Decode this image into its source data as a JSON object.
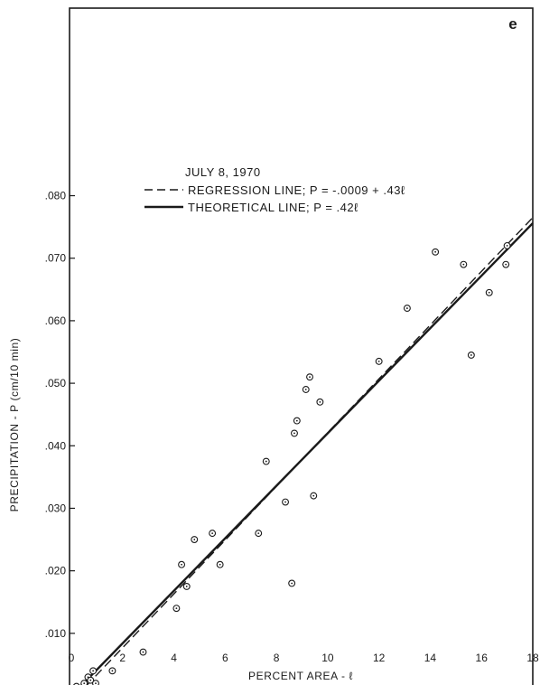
{
  "chart_data": {
    "type": "scatter",
    "panel_label": "e",
    "xlabel": "PERCENT AREA - ℓ",
    "ylabel": "PRECIPITATION - P (cm/10 min)",
    "xlim": [
      0,
      18
    ],
    "ylim": [
      0,
      0.11
    ],
    "x_ticks": [
      0,
      2,
      4,
      6,
      8,
      10,
      12,
      14,
      16,
      18
    ],
    "x_tick_labels": [
      "0",
      "2",
      "4",
      "6",
      "8",
      "10",
      "12",
      "14",
      "16",
      "18"
    ],
    "y_ticks": [
      0,
      0.01,
      0.02,
      0.03,
      0.04,
      0.05,
      0.06,
      0.07,
      0.08
    ],
    "y_tick_labels": [
      "0",
      ".010",
      ".020",
      ".030",
      ".040",
      ".050",
      ".060",
      ".070",
      ".080"
    ],
    "grid": false,
    "legend": {
      "title": "JULY 8, 1970",
      "entries": [
        {
          "label": "REGRESSION LINE; P = -.0009 + .43ℓ",
          "style": "dashed"
        },
        {
          "label": "THEORETICAL LINE; P = .42ℓ",
          "style": "solid"
        }
      ]
    },
    "lines": [
      {
        "style": "dashed",
        "intercept": -0.0009,
        "slope": 0.0043
      },
      {
        "style": "solid",
        "intercept": 0,
        "slope": 0.0042
      }
    ],
    "points": [
      {
        "x": 0.2,
        "y": 0.0015
      },
      {
        "x": 0.35,
        "y": 0.001
      },
      {
        "x": 0.5,
        "y": 0.002
      },
      {
        "x": 0.55,
        "y": 0.0005
      },
      {
        "x": 0.65,
        "y": 0.003
      },
      {
        "x": 0.7,
        "y": 0.001
      },
      {
        "x": 0.75,
        "y": 0.0025
      },
      {
        "x": 0.85,
        "y": 0.004
      },
      {
        "x": 0.95,
        "y": 0.002
      },
      {
        "x": 1.6,
        "y": 0.004
      },
      {
        "x": 2.8,
        "y": 0.007
      },
      {
        "x": 4.1,
        "y": 0.014
      },
      {
        "x": 4.3,
        "y": 0.021
      },
      {
        "x": 4.5,
        "y": 0.0175
      },
      {
        "x": 4.8,
        "y": 0.025
      },
      {
        "x": 5.5,
        "y": 0.026
      },
      {
        "x": 5.8,
        "y": 0.021
      },
      {
        "x": 7.3,
        "y": 0.026
      },
      {
        "x": 7.6,
        "y": 0.0375
      },
      {
        "x": 8.35,
        "y": 0.031
      },
      {
        "x": 8.6,
        "y": 0.018
      },
      {
        "x": 8.7,
        "y": 0.042
      },
      {
        "x": 8.8,
        "y": 0.044
      },
      {
        "x": 9.15,
        "y": 0.049
      },
      {
        "x": 9.3,
        "y": 0.051
      },
      {
        "x": 9.45,
        "y": 0.032
      },
      {
        "x": 9.7,
        "y": 0.047
      },
      {
        "x": 12.0,
        "y": 0.0535
      },
      {
        "x": 13.1,
        "y": 0.062
      },
      {
        "x": 14.2,
        "y": 0.071
      },
      {
        "x": 15.3,
        "y": 0.069
      },
      {
        "x": 15.6,
        "y": 0.0545
      },
      {
        "x": 16.3,
        "y": 0.0645
      },
      {
        "x": 16.95,
        "y": 0.069
      },
      {
        "x": 17.0,
        "y": 0.072
      }
    ]
  }
}
